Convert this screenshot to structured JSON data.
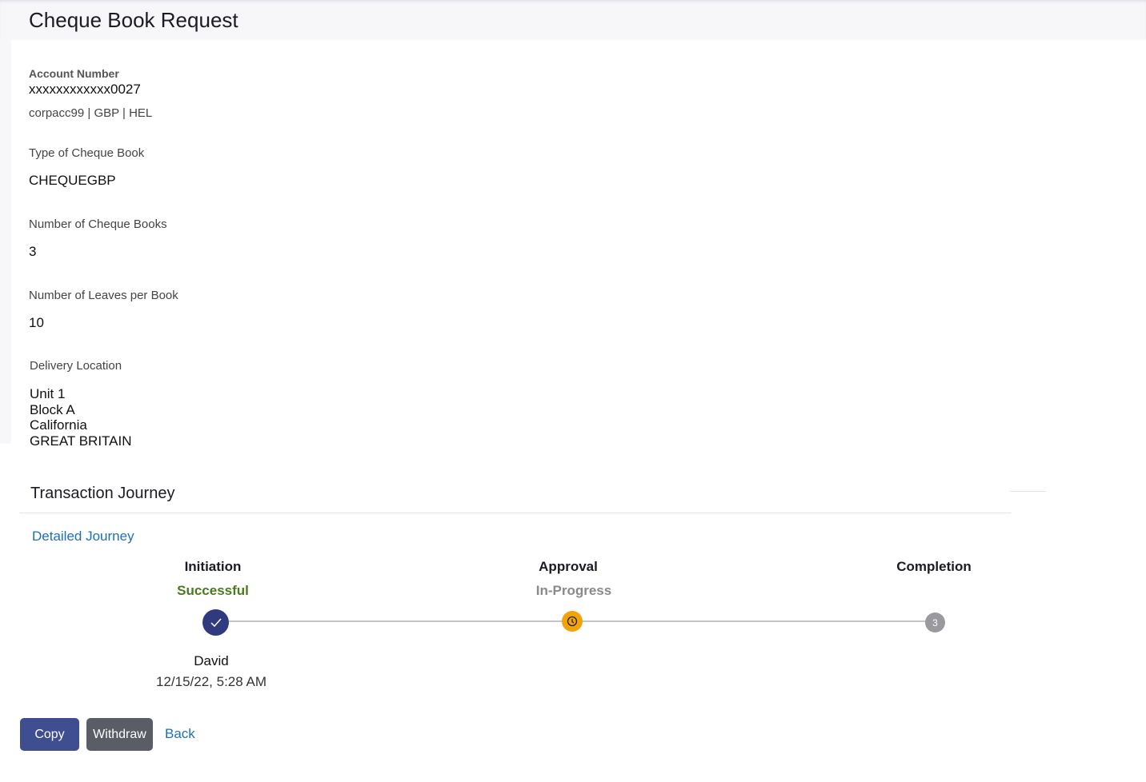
{
  "page": {
    "title": "Cheque Book Request"
  },
  "account": {
    "label": "Account Number",
    "number": "xxxxxxxxxxxx0027",
    "details": "corpacc99 | GBP | HEL"
  },
  "fields": [
    {
      "label": "Type of Cheque Book",
      "value": "CHEQUEGBP"
    },
    {
      "label": "Number of Cheque Books",
      "value": "3"
    },
    {
      "label": "Number of Leaves per Book",
      "value": "10"
    }
  ],
  "delivery": {
    "label": "Delivery Location",
    "lines": [
      "Unit 1",
      "Block A",
      "California",
      "GREAT BRITAIN"
    ]
  },
  "journey": {
    "title": "Transaction Journey",
    "detailed_link": "Detailed Journey",
    "steps": [
      {
        "name": "Initiation",
        "status": "Successful",
        "status_color": "#4a7a1e",
        "icon": "check-icon",
        "user": "David",
        "time": "12/15/22, 5:28 AM"
      },
      {
        "name": "Approval",
        "status": "In-Progress",
        "status_color": "#8a8a8a",
        "icon": "clock-icon"
      },
      {
        "name": "Completion",
        "status": "",
        "icon": "step-number",
        "number": "3"
      }
    ]
  },
  "actions": {
    "copy": "Copy",
    "withdraw": "Withdraw",
    "back": "Back"
  },
  "colors": {
    "primary": "#3f4d91",
    "secondary": "#5a5c66",
    "link": "#1f6fb5",
    "pending": "#f0a30a"
  }
}
